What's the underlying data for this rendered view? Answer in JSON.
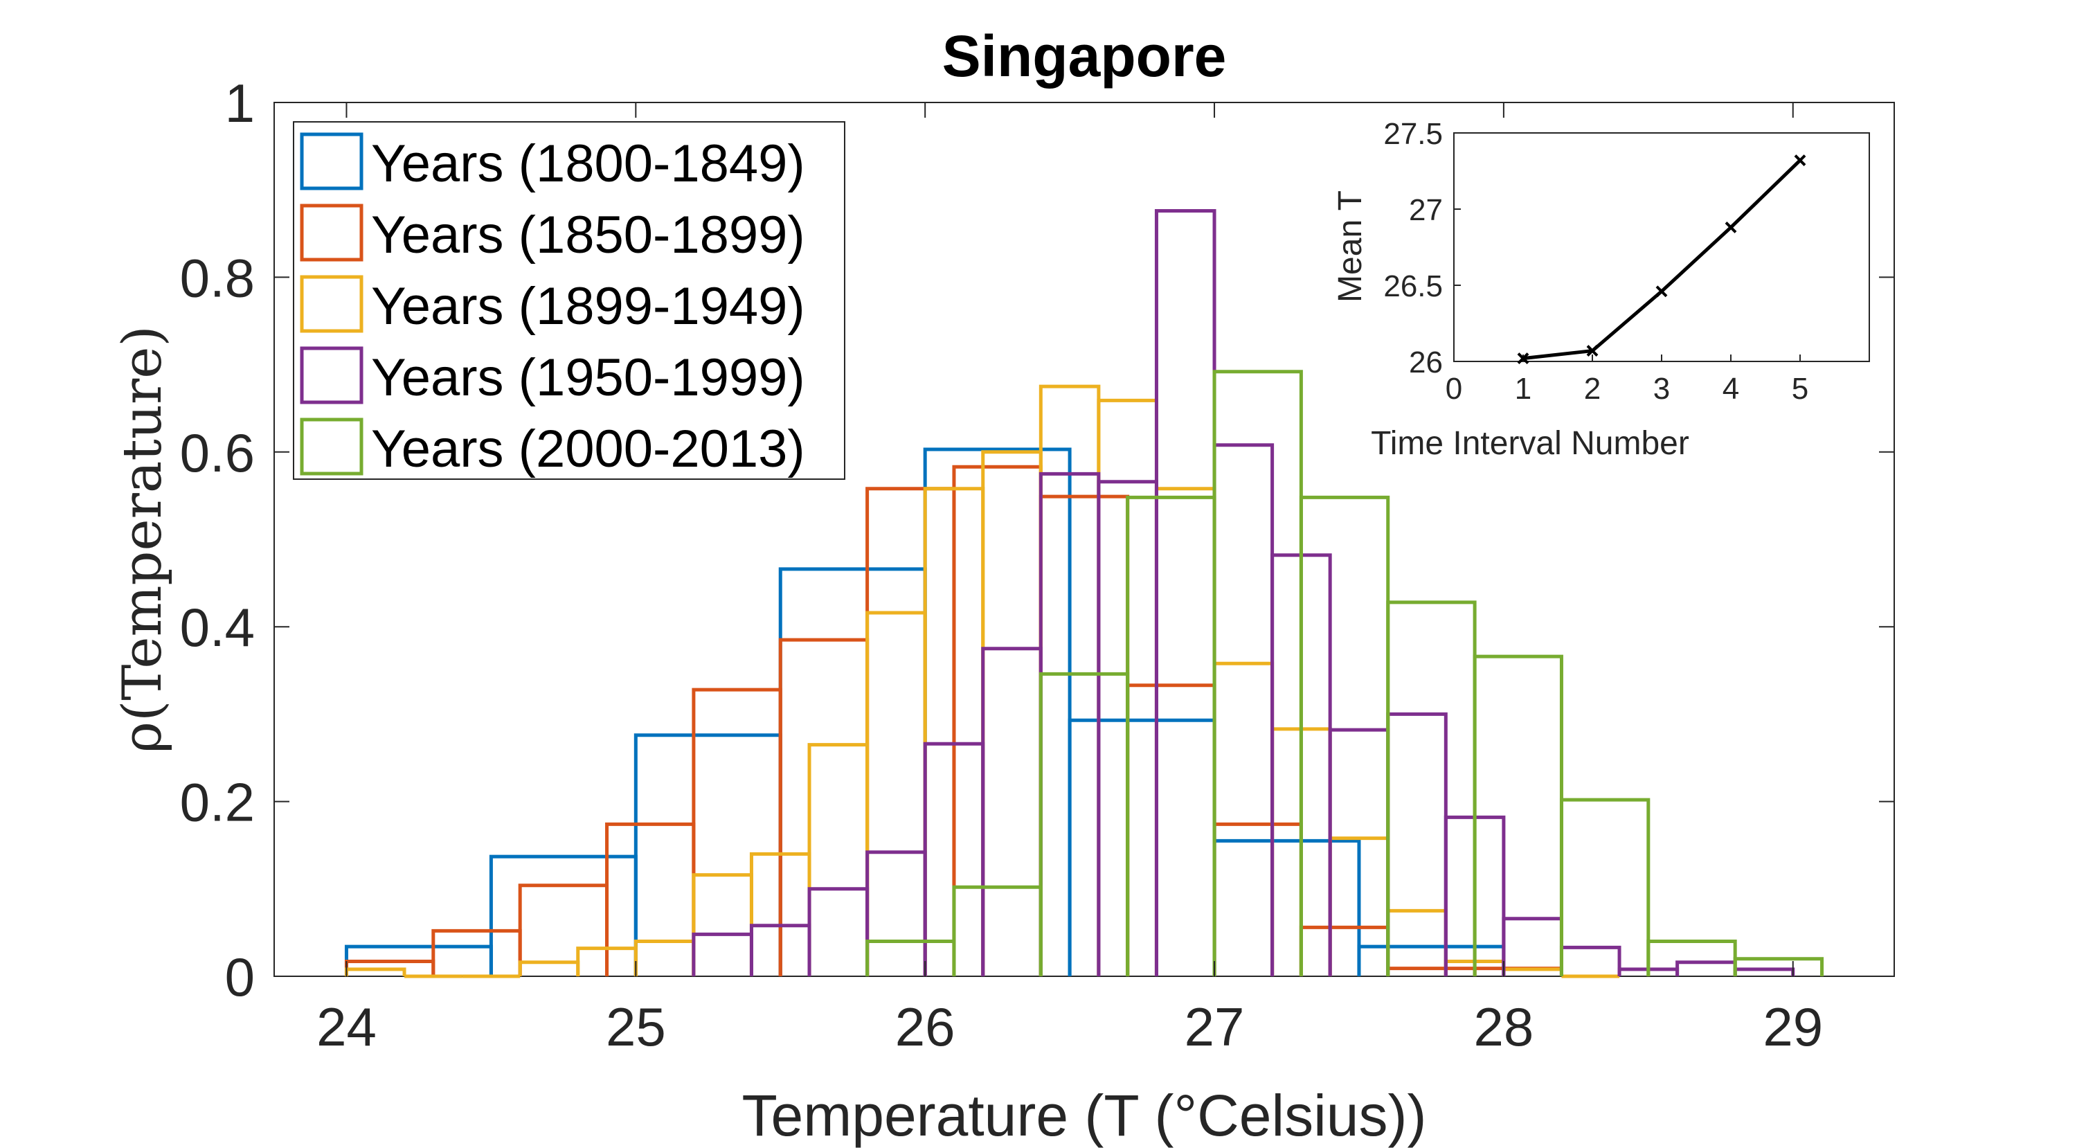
{
  "chart_data": [
    {
      "type": "histogram",
      "title": "Singapore",
      "xlabel": "Temperature (T (°Celsius))",
      "ylabel": "ρ(Temperature)",
      "xlim": [
        23.75,
        29.35
      ],
      "ylim": [
        0,
        1
      ],
      "xticks": [
        "24",
        "25",
        "26",
        "27",
        "28",
        "29"
      ],
      "yticks": [
        "0",
        "0.2",
        "0.4",
        "0.6",
        "0.8",
        "1"
      ],
      "grid": false,
      "legend_position": "top-left",
      "series": [
        {
          "name": "Years (1800-1849)",
          "color": "#0072BD",
          "edges": [
            24.0,
            24.5,
            25.0,
            25.5,
            26.0,
            26.5,
            27.0,
            27.5,
            28.0
          ],
          "values": [
            0.034,
            0.137,
            0.276,
            0.466,
            0.603,
            0.293,
            0.155,
            0.034
          ]
        },
        {
          "name": "Years (1850-1899)",
          "color": "#D95319",
          "edges": [
            24.0,
            24.3,
            24.6,
            24.9,
            25.2,
            25.5,
            25.8,
            26.1,
            26.4,
            26.7,
            27.0,
            27.3,
            27.6,
            27.9,
            28.2
          ],
          "values": [
            0.017,
            0.052,
            0.104,
            0.174,
            0.328,
            0.385,
            0.558,
            0.583,
            0.549,
            0.333,
            0.174,
            0.056,
            0.009,
            0.009
          ]
        },
        {
          "name": "Years (1899-1949)",
          "color": "#EDB120",
          "edges": [
            24.0,
            24.2,
            24.4,
            24.6,
            24.8,
            25.0,
            25.2,
            25.4,
            25.6,
            25.8,
            26.0,
            26.2,
            26.4,
            26.6,
            26.8,
            27.0,
            27.2,
            27.4,
            27.6,
            27.8,
            28.0,
            28.2,
            28.4
          ],
          "values": [
            0.008,
            0.0,
            0.0,
            0.016,
            0.032,
            0.04,
            0.116,
            0.14,
            0.265,
            0.416,
            0.558,
            0.6,
            0.675,
            0.659,
            0.558,
            0.358,
            0.283,
            0.158,
            0.075,
            0.017,
            0.008,
            0.0
          ]
        },
        {
          "name": "Years (1950-1999)",
          "color": "#7E2F8E",
          "edges": [
            25.2,
            25.4,
            25.6,
            25.8,
            26.0,
            26.2,
            26.4,
            26.6,
            26.8,
            27.0,
            27.2,
            27.4,
            27.6,
            27.8,
            28.0,
            28.2,
            28.4,
            28.6,
            28.8,
            29.0
          ],
          "values": [
            0.048,
            0.058,
            0.1,
            0.142,
            0.266,
            0.375,
            0.575,
            0.566,
            0.876,
            0.608,
            0.482,
            0.282,
            0.3,
            0.182,
            0.066,
            0.033,
            0.008,
            0.016,
            0.008
          ]
        },
        {
          "name": "Years (2000-2013)",
          "color": "#77AC30",
          "edges": [
            25.8,
            26.1,
            26.4,
            26.7,
            27.0,
            27.3,
            27.6,
            27.9,
            28.2,
            28.5,
            28.8,
            29.1
          ],
          "values": [
            0.04,
            0.102,
            0.346,
            0.548,
            0.692,
            0.548,
            0.428,
            0.366,
            0.202,
            0.04,
            0.02
          ]
        }
      ]
    },
    {
      "type": "line",
      "xlabel": "Time Interval Number",
      "ylabel": "Mean T",
      "xlim": [
        0,
        6
      ],
      "ylim": [
        26,
        27.5
      ],
      "xticks": [
        "0",
        "1",
        "2",
        "3",
        "4",
        "5"
      ],
      "yticks": [
        "26",
        "26.5",
        "27",
        "27.5"
      ],
      "grid": false,
      "marker": "x",
      "color": "#000000",
      "x": [
        1,
        2,
        3,
        4,
        5
      ],
      "y": [
        26.02,
        26.07,
        26.46,
        26.88,
        27.32
      ]
    }
  ]
}
